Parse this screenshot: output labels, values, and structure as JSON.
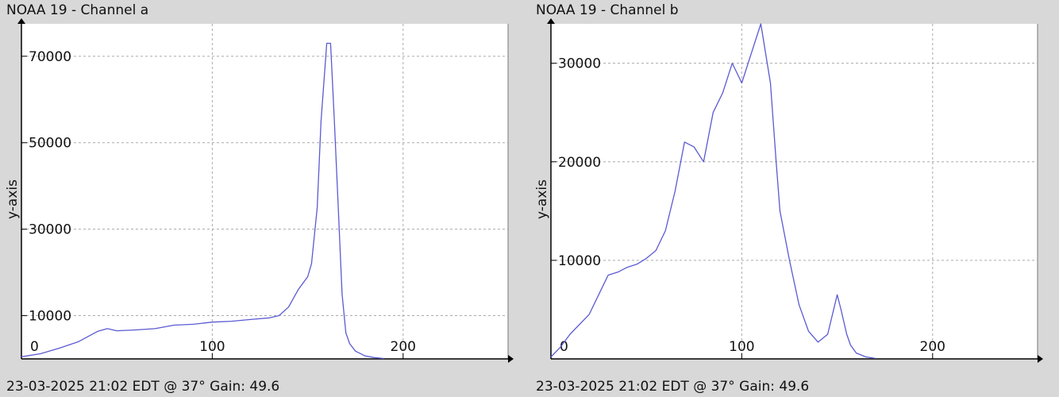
{
  "colors": {
    "plot_bg": "#ffffff",
    "line": "#5a5ad2",
    "grid": "#aaaaaa",
    "axis": "#000000"
  },
  "panels": [
    {
      "title": "NOAA 19 - Channel a",
      "footer": "23-03-2025 21:02 EDT @ 37° Gain: 49.6"
    },
    {
      "title": "NOAA 19 - Channel b",
      "footer": "23-03-2025 21:02 EDT @ 37° Gain: 49.6"
    }
  ],
  "chart_data": [
    {
      "type": "line",
      "title": "NOAA 19 - Channel a",
      "xlabel": "",
      "ylabel": "y-axis",
      "xlim": [
        0,
        255
      ],
      "ylim": [
        0,
        77500
      ],
      "x_ticks": [
        0,
        100,
        200
      ],
      "y_ticks": [
        10000,
        30000,
        50000,
        70000
      ],
      "grid": true,
      "series": [
        {
          "x": [
            0,
            10,
            20,
            30,
            40,
            45,
            50,
            60,
            70,
            80,
            90,
            100,
            110,
            120,
            130,
            135,
            140,
            145,
            150,
            152,
            155,
            157,
            160,
            162,
            164,
            166,
            168,
            170,
            172,
            175,
            180,
            185,
            190
          ],
          "y": [
            500,
            1200,
            2500,
            4000,
            6400,
            7000,
            6500,
            6700,
            7000,
            7800,
            8000,
            8500,
            8700,
            9100,
            9500,
            10000,
            12000,
            16000,
            19000,
            22000,
            35000,
            55000,
            73000,
            73000,
            55000,
            35000,
            15000,
            6000,
            3500,
            1800,
            700,
            300,
            100
          ]
        }
      ]
    },
    {
      "type": "line",
      "title": "NOAA 19 - Channel b",
      "xlabel": "",
      "ylabel": "y-axis",
      "xlim": [
        0,
        255
      ],
      "ylim": [
        0,
        34000
      ],
      "x_ticks": [
        0,
        100,
        200
      ],
      "y_ticks": [
        10000,
        20000,
        30000
      ],
      "grid": true,
      "series": [
        {
          "x": [
            0,
            5,
            10,
            20,
            25,
            30,
            35,
            40,
            45,
            50,
            55,
            60,
            65,
            70,
            75,
            80,
            85,
            90,
            95,
            100,
            105,
            110,
            115,
            118,
            120,
            125,
            130,
            135,
            140,
            145,
            150,
            152,
            155,
            157,
            160,
            165,
            170
          ],
          "y": [
            200,
            1200,
            2500,
            4500,
            6500,
            8500,
            8800,
            9300,
            9600,
            10200,
            11000,
            13000,
            17000,
            22000,
            21500,
            20000,
            25000,
            27000,
            30000,
            28000,
            31000,
            34000,
            28000,
            20000,
            15000,
            10000,
            5500,
            2800,
            1700,
            2500,
            6500,
            5000,
            2500,
            1400,
            600,
            200,
            50
          ]
        }
      ]
    }
  ]
}
